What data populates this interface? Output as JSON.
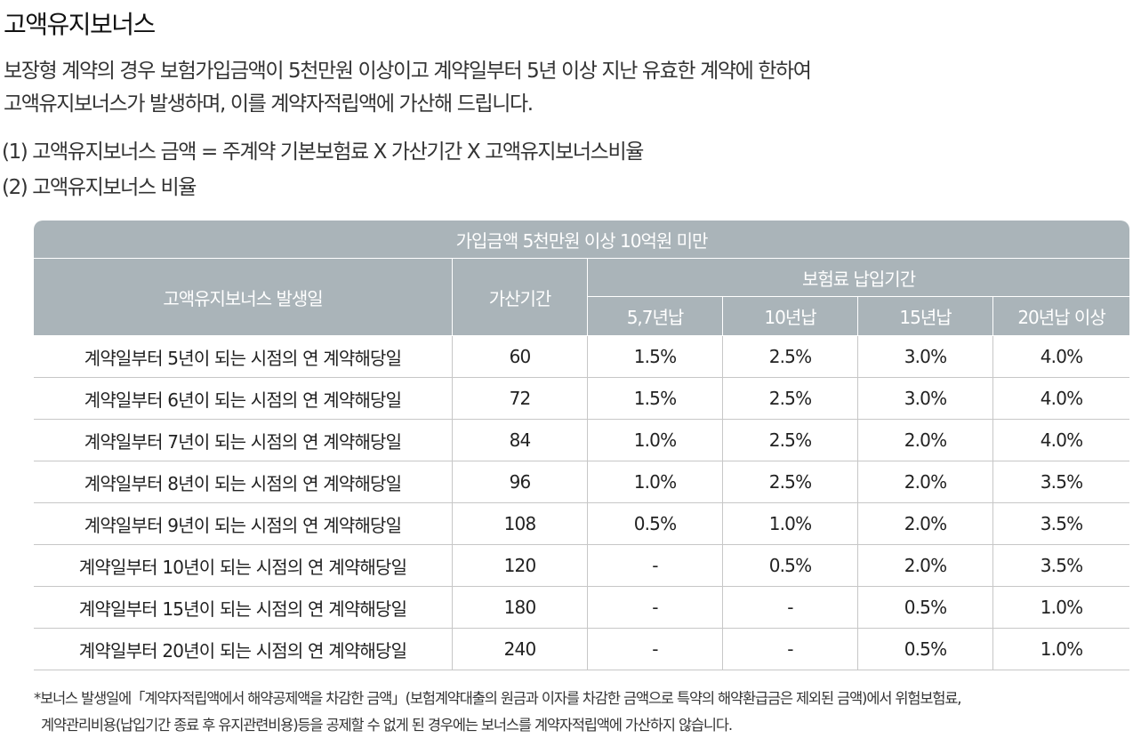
{
  "title": "고액유지보너스",
  "intro": {
    "line1": "보장형 계약의 경우 보험가입금액이 5천만원 이상이고 계약일부터 5년 이상 지난 유효한 계약에 한하여",
    "line2": "고액유지보너스가 발생하며, 이를 계약자적립액에 가산해 드립니다."
  },
  "formula": {
    "line1": "(1) 고액유지보너스 금액 = 주계약 기본보험료 X 가산기간 X 고액유지보너스비율",
    "line2": "(2) 고액유지보너스 비율"
  },
  "table": {
    "caption": "가입금액 5천만원 이상 10억원 미만",
    "col_occurrence": "고액유지보너스 발생일",
    "col_period": "가산기간",
    "col_payment": "보험료 납입기간",
    "sub_cols": [
      "5,7년납",
      "10년납",
      "15년납",
      "20년납 이상"
    ],
    "rows": [
      {
        "date": "계약일부터 5년이 되는 시점의 연 계약해당일",
        "period": "60",
        "r1": "1.5%",
        "r2": "2.5%",
        "r3": "3.0%",
        "r4": "4.0%"
      },
      {
        "date": "계약일부터 6년이 되는 시점의 연 계약해당일",
        "period": "72",
        "r1": "1.5%",
        "r2": "2.5%",
        "r3": "3.0%",
        "r4": "4.0%"
      },
      {
        "date": "계약일부터 7년이 되는 시점의 연 계약해당일",
        "period": "84",
        "r1": "1.0%",
        "r2": "2.5%",
        "r3": "2.0%",
        "r4": "4.0%"
      },
      {
        "date": "계약일부터 8년이 되는 시점의 연 계약해당일",
        "period": "96",
        "r1": "1.0%",
        "r2": "2.5%",
        "r3": "2.0%",
        "r4": "3.5%"
      },
      {
        "date": "계약일부터 9년이 되는 시점의 연 계약해당일",
        "period": "108",
        "r1": "0.5%",
        "r2": "1.0%",
        "r3": "2.0%",
        "r4": "3.5%"
      },
      {
        "date": "계약일부터 10년이 되는 시점의 연 계약해당일",
        "period": "120",
        "r1": "-",
        "r2": "0.5%",
        "r3": "2.0%",
        "r4": "3.5%"
      },
      {
        "date": "계약일부터 15년이 되는 시점의 연 계약해당일",
        "period": "180",
        "r1": "-",
        "r2": "-",
        "r3": "0.5%",
        "r4": "1.0%"
      },
      {
        "date": "계약일부터 20년이 되는 시점의 연 계약해당일",
        "period": "240",
        "r1": "-",
        "r2": "-",
        "r3": "0.5%",
        "r4": "1.0%"
      }
    ]
  },
  "footnote": {
    "line1": "*보너스 발생일에「계약자적립액에서 해약공제액을 차감한 금액」(보험계약대출의 원금과 이자를 차감한 금액으로 특약의 해약환급금은 제외된 금액)에서 위험보험료,",
    "line2": "계약관리비용(납입기간 종료 후 유지관련비용)등을 공제할 수 없게 된 경우에는 보너스를 계약자적립액에 가산하지 않습니다."
  }
}
